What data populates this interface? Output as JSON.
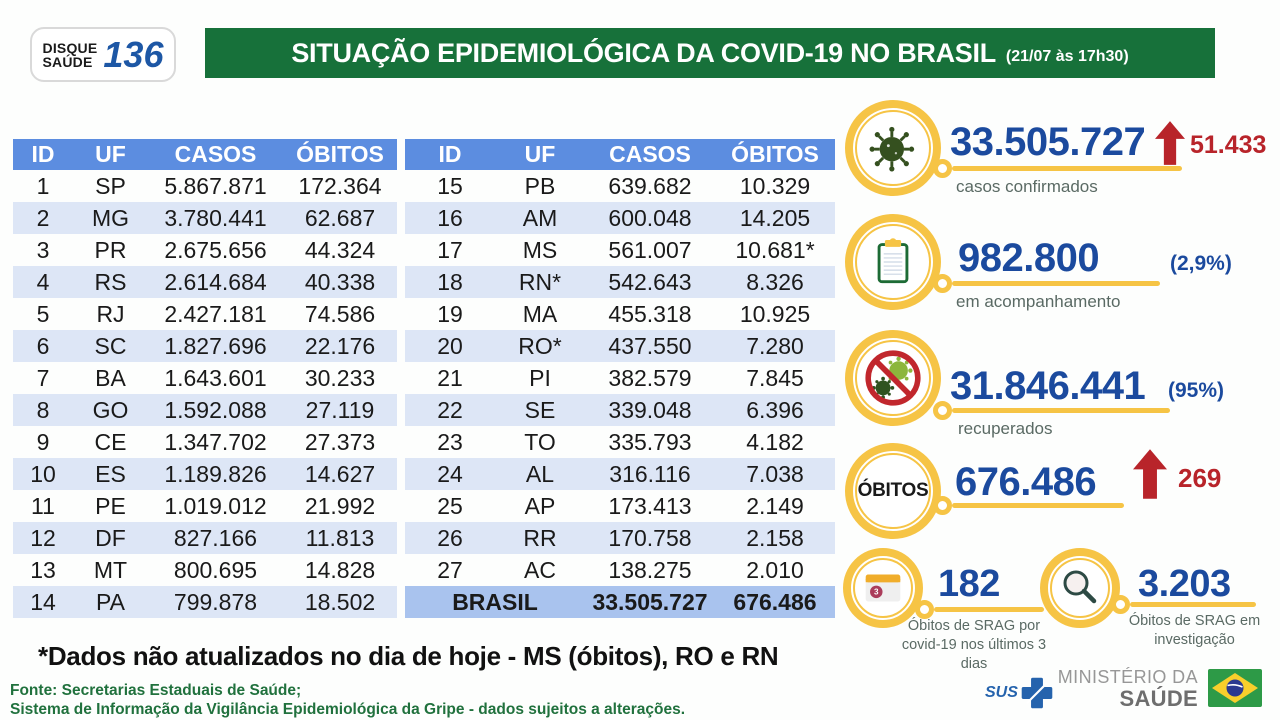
{
  "header": {
    "logo": {
      "line1": "DISQUE",
      "line2": "SAÚDE",
      "number": "136"
    },
    "title": "SITUAÇÃO EPIDEMIOLÓGICA DA COVID-19 NO BRASIL",
    "timestamp": "(21/07 às 17h30)"
  },
  "tables": {
    "columns": [
      "ID",
      "UF",
      "CASOS",
      "ÓBITOS"
    ],
    "left": {
      "rows": [
        [
          "1",
          "SP",
          "5.867.871",
          "172.364"
        ],
        [
          "2",
          "MG",
          "3.780.441",
          "62.687"
        ],
        [
          "3",
          "PR",
          "2.675.656",
          "44.324"
        ],
        [
          "4",
          "RS",
          "2.614.684",
          "40.338"
        ],
        [
          "5",
          "RJ",
          "2.427.181",
          "74.586"
        ],
        [
          "6",
          "SC",
          "1.827.696",
          "22.176"
        ],
        [
          "7",
          "BA",
          "1.643.601",
          "30.233"
        ],
        [
          "8",
          "GO",
          "1.592.088",
          "27.119"
        ],
        [
          "9",
          "CE",
          "1.347.702",
          "27.373"
        ],
        [
          "10",
          "ES",
          "1.189.826",
          "14.627"
        ],
        [
          "11",
          "PE",
          "1.019.012",
          "21.992"
        ],
        [
          "12",
          "DF",
          "827.166",
          "11.813"
        ],
        [
          "13",
          "MT",
          "800.695",
          "14.828"
        ],
        [
          "14",
          "PA",
          "799.878",
          "18.502"
        ]
      ]
    },
    "right": {
      "rows": [
        [
          "15",
          "PB",
          "639.682",
          "10.329"
        ],
        [
          "16",
          "AM",
          "600.048",
          "14.205"
        ],
        [
          "17",
          "MS",
          "561.007",
          "10.681*"
        ],
        [
          "18",
          "RN*",
          "542.643",
          "8.326"
        ],
        [
          "19",
          "MA",
          "455.318",
          "10.925"
        ],
        [
          "20",
          "RO*",
          "437.550",
          "7.280"
        ],
        [
          "21",
          "PI",
          "382.579",
          "7.845"
        ],
        [
          "22",
          "SE",
          "339.048",
          "6.396"
        ],
        [
          "23",
          "TO",
          "335.793",
          "4.182"
        ],
        [
          "24",
          "AL",
          "316.116",
          "7.038"
        ],
        [
          "25",
          "AP",
          "173.413",
          "2.149"
        ],
        [
          "26",
          "RR",
          "170.758",
          "2.158"
        ],
        [
          "27",
          "AC",
          "138.275",
          "2.010"
        ]
      ],
      "total": {
        "label": "BRASIL",
        "cases": "33.505.727",
        "deaths": "676.486"
      }
    }
  },
  "stats": {
    "confirmed": {
      "value": "33.505.727",
      "delta": "51.433",
      "label": "casos confirmados"
    },
    "monitoring": {
      "value": "982.800",
      "pct": "(2,9%)",
      "label": "em acompanhamento"
    },
    "recovered": {
      "value": "31.846.441",
      "pct": "(95%)",
      "label": "recuperados"
    },
    "deaths": {
      "badge": "ÓBITOS",
      "value": "676.486",
      "delta": "269"
    },
    "srag_recent": {
      "value": "182",
      "label": "Óbitos de SRAG por covid-19 nos últimos 3 dias",
      "calendar_number": "3"
    },
    "srag_investigation": {
      "value": "3.203",
      "label": "Óbitos de SRAG em investigação"
    }
  },
  "footnote": {
    "text": "*Dados não atualizados no dia de hoje - MS (óbitos), RO e RN"
  },
  "source": {
    "line1": "Fonte: Secretarias Estaduais de Saúde;",
    "line2": "Sistema de Informação da Vigilância Epidemiológica da Gripe - dados sujeitos a alterações."
  },
  "footer": {
    "sus_label": "SUS",
    "ministry_line1": "MINISTÉRIO DA",
    "ministry_line2": "SAÚDE"
  },
  "colors": {
    "banner_green": "#17713a",
    "table_header_blue": "#5c8de0",
    "row_stripe_blue": "#dde6f6",
    "total_row_blue": "#a9c3ee",
    "stat_number_blue": "#1b4a9e",
    "accent_red": "#b8242a",
    "highlight_yellow": "#f6c445",
    "source_green": "#20713d"
  }
}
